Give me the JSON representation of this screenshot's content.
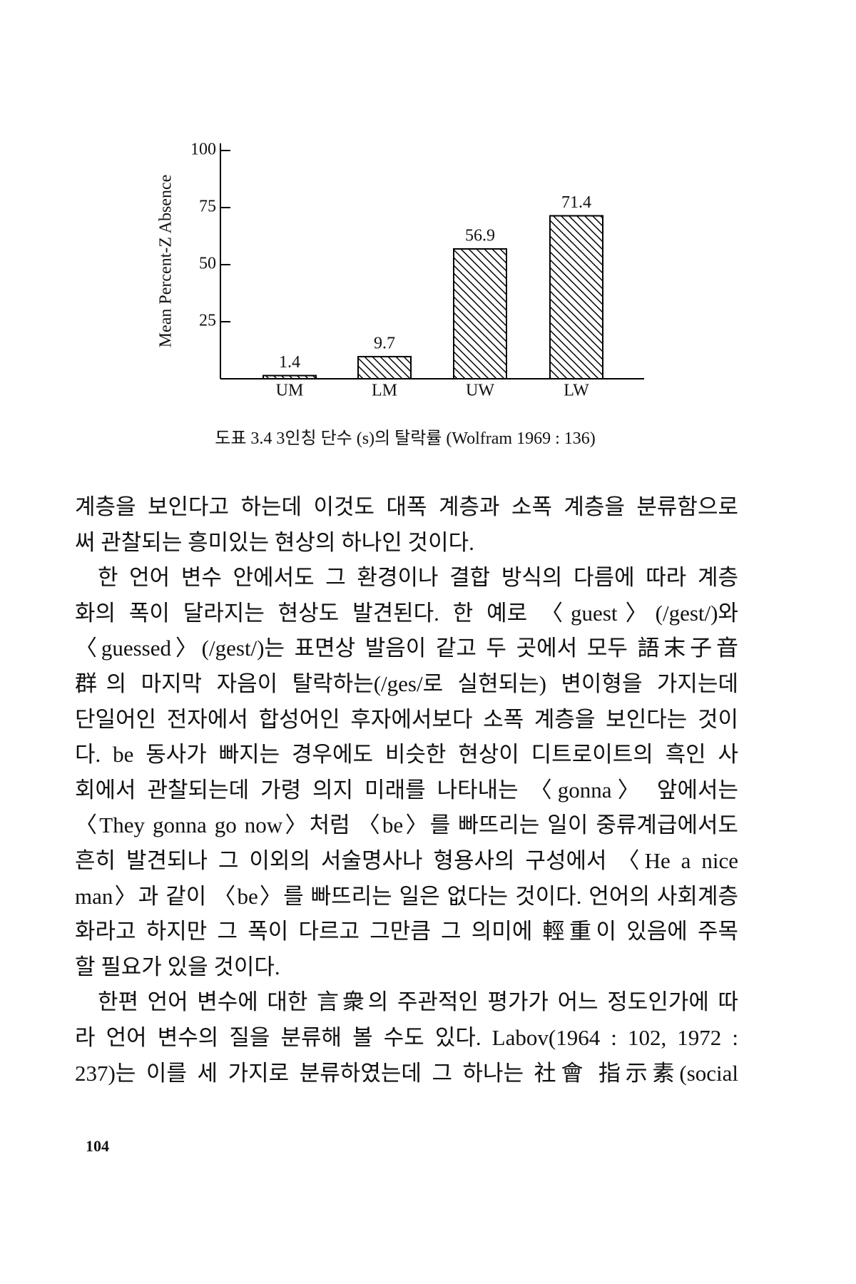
{
  "chart_data": {
    "type": "bar",
    "ylabel": "Mean Percent-Z Absence",
    "categories": [
      "UM",
      "LM",
      "UW",
      "LW"
    ],
    "values": [
      1.4,
      9.7,
      56.9,
      71.4
    ],
    "ylim": [
      0,
      100
    ],
    "yticks": [
      25,
      50,
      75,
      100
    ],
    "color": "#000000",
    "hatch": true
  },
  "caption": "도표 3.4  3인칭 단수 (s)의 탈락률 (Wolfram 1969 : 136)",
  "paragraphs": [
    {
      "indent": false,
      "lines": [
        "계층을 보인다고 하는데 이것도 대폭 계층과 소폭 계층을 분류함으로",
        "써 관찰되는 흥미있는 현상의 하나인 것이다."
      ]
    },
    {
      "indent": true,
      "lines": [
        "한 언어 변수 안에서도 그 환경이나 결합 방식의 다름에 따라 계층",
        "화의 폭이 달라지는 현상도 발견된다. 한 예로 〈guest〉(/gest/)와",
        "〈guessed〉(/gest/)는 표면상 발음이 같고 두 곳에서 모두 語末子音",
        "群의 마지막 자음이 탈락하는(/ges/로 실현되는) 변이형을 가지는데",
        "단일어인 전자에서 합성어인 후자에서보다 소폭 계층을 보인다는 것이",
        "다. be 동사가 빠지는 경우에도 비슷한 현상이 디트로이트의 흑인 사",
        "회에서 관찰되는데 가령 의지 미래를 나타내는 〈gonna〉 앞에서는",
        "〈They gonna go now〉처럼 〈be〉를 빠뜨리는 일이 중류계급에서도",
        "흔히 발견되나 그 이외의 서술명사나 형용사의 구성에서 〈He a nice",
        "man〉과 같이 〈be〉를 빠뜨리는 일은 없다는 것이다. 언어의 사회계층",
        "화라고 하지만 그 폭이 다르고 그만큼 그 의미에 輕重이 있음에 주목",
        "할 필요가 있을 것이다."
      ]
    },
    {
      "indent": true,
      "lines": [
        "한편 언어 변수에 대한 言衆의 주관적인 평가가 어느 정도인가에 따",
        "라 언어 변수의 질을 분류해 볼 수도 있다. Labov(1964 : 102, 1972 :",
        "237)는 이를 세 가지로 분류하였는데 그 하나는 社會 指示素(social"
      ]
    }
  ],
  "page_number": "104"
}
